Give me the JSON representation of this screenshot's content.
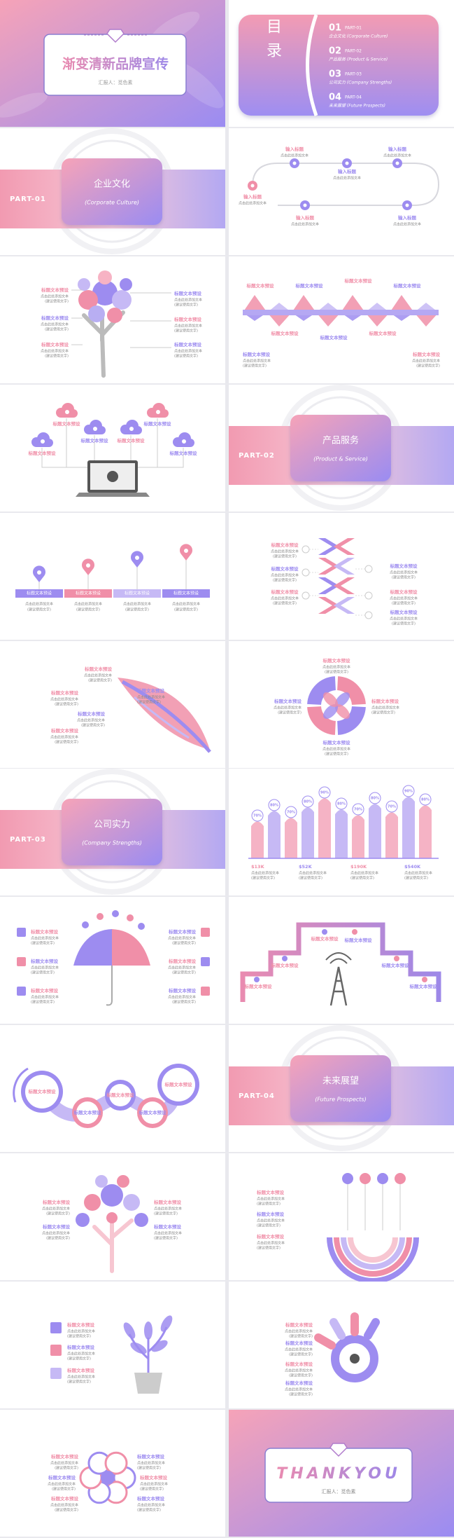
{
  "slides": [
    {
      "type": "cover",
      "title": "渐变清新品牌宣传",
      "subtitle": "汇报人：觅色素"
    },
    {
      "type": "toc",
      "heading": "目录",
      "items": [
        {
          "num": "01",
          "part": "PART-01",
          "name": "企业文化 (Corporate Culture)"
        },
        {
          "num": "02",
          "part": "PART-02",
          "name": "产品服务 (Product & Service)"
        },
        {
          "num": "03",
          "part": "PART-03",
          "name": "公司实力 (Company Strengths)"
        },
        {
          "num": "04",
          "part": "PART-04",
          "name": "未来展望 (Future Prospects)"
        }
      ]
    },
    {
      "type": "section",
      "part": "PART-01",
      "title": "企业文化",
      "subtitle": "(Corporate Culture)"
    },
    {
      "type": "timeline",
      "items": [
        {
          "title": "输入标题",
          "text": "点击此处添加文本"
        },
        {
          "title": "输入标题",
          "text": "点击此处添加文本"
        },
        {
          "title": "输入标题",
          "text": "点击此处添加文本"
        },
        {
          "title": "输入标题",
          "text": "点击此处添加文本"
        },
        {
          "title": "输入标题",
          "text": "点击此处添加文本"
        },
        {
          "title": "输入标题",
          "text": "点击此处添加文本"
        }
      ]
    },
    {
      "type": "tree",
      "items": [
        {
          "title": "标题文本预设",
          "text": "点击此处添加文本",
          "note": "(建议使用文字)"
        },
        {
          "title": "标题文本预设",
          "text": "点击此处添加文本",
          "note": "(建议使用文字)"
        },
        {
          "title": "标题文本预设",
          "text": "点击此处添加文本",
          "note": "(建议使用文字)"
        },
        {
          "title": "标题文本预设",
          "text": "点击此处添加文本",
          "note": "(建议使用文字)"
        },
        {
          "title": "标题文本预设",
          "text": "点击此处添加文本",
          "note": "(建议使用文字)"
        },
        {
          "title": "标题文本预设",
          "text": "点击此处添加文本",
          "note": "(建议使用文字)"
        }
      ]
    },
    {
      "type": "wave",
      "items": [
        {
          "title": "标题文本预设"
        },
        {
          "title": "标题文本预设"
        },
        {
          "title": "标题文本预设"
        },
        {
          "title": "标题文本预设"
        },
        {
          "title": "标题文本预设"
        },
        {
          "title": "标题文本预设"
        },
        {
          "title": "标题文本预设"
        },
        {
          "title": "标题文本预设",
          "text": "点击此处添加文本",
          "note": "(建议使用文字)"
        },
        {
          "title": "标题文本预设",
          "text": "点击此处添加文本",
          "note": "(建议使用文字)"
        }
      ]
    },
    {
      "type": "clouds",
      "items": [
        {
          "title": "标题文本预设"
        },
        {
          "title": "标题文本预设"
        },
        {
          "title": "标题文本预设"
        },
        {
          "title": "标题文本预设"
        },
        {
          "title": "标题文本预设"
        },
        {
          "title": "标题文本预设"
        }
      ]
    },
    {
      "type": "section",
      "part": "PART-02",
      "title": "产品服务",
      "subtitle": "(Product & Service)"
    },
    {
      "type": "pins",
      "items": [
        {
          "title": "标题文本预设",
          "text": "点击此处添加文本",
          "note": "(建议使用文字)"
        },
        {
          "title": "标题文本预设",
          "text": "点击此处添加文本",
          "note": "(建议使用文字)"
        },
        {
          "title": "标题文本预设",
          "text": "点击此处添加文本",
          "note": "(建议使用文字)"
        },
        {
          "title": "标题文本预设",
          "text": "点击此处添加文本",
          "note": "(建议使用文字)"
        }
      ]
    },
    {
      "type": "chevron",
      "items": [
        {
          "title": "标题文本预设",
          "text": "点击此处添加文本",
          "note": "(建议使用文字)"
        },
        {
          "title": "标题文本预设",
          "text": "点击此处添加文本",
          "note": "(建议使用文字)"
        },
        {
          "title": "标题文本预设",
          "text": "点击此处添加文本",
          "note": "(建议使用文字)"
        },
        {
          "title": "标题文本预设",
          "text": "点击此处添加文本",
          "note": "(建议使用文字)"
        },
        {
          "title": "标题文本预设",
          "text": "点击此处添加文本",
          "note": "(建议使用文字)"
        },
        {
          "title": "标题文本预设",
          "text": "点击此处添加文本",
          "note": "(建议使用文字)"
        }
      ]
    },
    {
      "type": "feather",
      "items": [
        {
          "title": "标题文本预设",
          "text": "点击此处添加文本",
          "note": "(建议使用文字)"
        },
        {
          "title": "标题文本预设",
          "text": "点击此处添加文本",
          "note": "(建议使用文字)"
        },
        {
          "title": "标题文本预设",
          "text": "点击此处添加文本",
          "note": "(建议使用文字)"
        },
        {
          "title": "标题文本预设",
          "text": "点击此处添加文本",
          "note": "(建议使用文字)"
        },
        {
          "title": "标题文本预设",
          "text": "点击此处添加文本",
          "note": "(建议使用文字)"
        }
      ]
    },
    {
      "type": "ring",
      "items": [
        {
          "title": "标题文本预设",
          "text": "点击此处添加文本",
          "note": "(建议使用文字)"
        },
        {
          "title": "标题文本预设",
          "text": "点击此处添加文本",
          "note": "(建议使用文字)"
        },
        {
          "title": "标题文本预设",
          "text": "点击此处添加文本",
          "note": "(建议使用文字)"
        },
        {
          "title": "标题文本预设",
          "text": "点击此处添加文本",
          "note": "(建议使用文字)"
        }
      ]
    },
    {
      "type": "section",
      "part": "PART-03",
      "title": "公司实力",
      "subtitle": "(Company Strengths)"
    },
    {
      "type": "bars",
      "values": [
        "70%",
        "80%",
        "70%",
        "80%",
        "90%",
        "80%",
        "70%",
        "80%",
        "70%",
        "90%",
        "80%"
      ],
      "items": [
        {
          "title": "$13K",
          "text": "点击此处添加文本",
          "note": "(建议使用文字)"
        },
        {
          "title": "$52K",
          "text": "点击此处添加文本",
          "note": "(建议使用文字)"
        },
        {
          "title": "$190K",
          "text": "点击此处添加文本",
          "note": "(建议使用文字)"
        },
        {
          "title": "$540K",
          "text": "点击此处添加文本",
          "note": "(建议使用文字)"
        }
      ]
    },
    {
      "type": "umbrella",
      "items": [
        {
          "title": "标题文本预设",
          "text": "点击此处添加文本",
          "note": "(建议使用文字)"
        },
        {
          "title": "标题文本预设",
          "text": "点击此处添加文本",
          "note": "(建议使用文字)"
        },
        {
          "title": "标题文本预设",
          "text": "点击此处添加文本",
          "note": "(建议使用文字)"
        },
        {
          "title": "标题文本预设",
          "text": "点击此处添加文本",
          "note": "(建议使用文字)"
        },
        {
          "title": "标题文本预设",
          "text": "点击此处添加文本",
          "note": "(建议使用文字)"
        },
        {
          "title": "标题文本预设",
          "text": "点击此处添加文本",
          "note": "(建议使用文字)"
        }
      ]
    },
    {
      "type": "stairs",
      "items": [
        {
          "title": "标题文本预设"
        },
        {
          "title": "标题文本预设"
        },
        {
          "title": "标题文本预设"
        },
        {
          "title": "标题文本预设"
        },
        {
          "title": "标题文本预设"
        },
        {
          "title": "标题文本预设"
        }
      ]
    },
    {
      "type": "chain",
      "items": [
        {
          "title": "标题文本预设"
        },
        {
          "title": "标题文本预设"
        },
        {
          "title": "标题文本预设"
        },
        {
          "title": "标题文本预设"
        },
        {
          "title": "标题文本预设"
        }
      ]
    },
    {
      "type": "section",
      "part": "PART-04",
      "title": "未来展望",
      "subtitle": "(Future Prospects)"
    },
    {
      "type": "tree2",
      "items": [
        {
          "title": "标题文本预设",
          "text": "点击此处添加文本",
          "note": "(建议使用文字)"
        },
        {
          "title": "标题文本预设",
          "text": "点击此处添加文本",
          "note": "(建议使用文字)"
        },
        {
          "title": "标题文本预设",
          "text": "点击此处添加文本",
          "note": "(建议使用文字)"
        },
        {
          "title": "标题文本预设",
          "text": "点击此处添加文本",
          "note": "(建议使用文字)"
        }
      ]
    },
    {
      "type": "arcs",
      "items": [
        {
          "title": "标题文本预设",
          "text": "点击此处添加文本",
          "note": "(建议使用文字)"
        },
        {
          "title": "标题文本预设",
          "text": "点击此处添加文本",
          "note": "(建议使用文字)"
        },
        {
          "title": "标题文本预设",
          "text": "点击此处添加文本",
          "note": "(建议使用文字)"
        }
      ]
    },
    {
      "type": "plant",
      "items": [
        {
          "title": "标题文本预设",
          "text": "点击此处添加文本",
          "note": "(建议使用文字)"
        },
        {
          "title": "标题文本预设",
          "text": "点击此处添加文本",
          "note": "(建议使用文字)"
        },
        {
          "title": "标题文本预设",
          "text": "点击此处添加文本",
          "note": "(建议使用文字)"
        }
      ]
    },
    {
      "type": "hand",
      "items": [
        {
          "title": "标题文本预设",
          "text": "点击此处添加文本",
          "note": "(建议使用文字)"
        },
        {
          "title": "标题文本预设",
          "text": "点击此处添加文本",
          "note": "(建议使用文字)"
        },
        {
          "title": "标题文本预设",
          "text": "点击此处添加文本",
          "note": "(建议使用文字)"
        },
        {
          "title": "标题文本预设",
          "text": "点击此处添加文本",
          "note": "(建议使用文字)"
        }
      ]
    },
    {
      "type": "flower",
      "items": [
        {
          "title": "标题文本预设",
          "text": "点击此处添加文本",
          "note": "(建议使用文字)"
        },
        {
          "title": "标题文本预设",
          "text": "点击此处添加文本",
          "note": "(建议使用文字)"
        },
        {
          "title": "标题文本预设",
          "text": "点击此处添加文本",
          "note": "(建议使用文字)"
        },
        {
          "title": "标题文本预设",
          "text": "点击此处添加文本",
          "note": "(建议使用文字)"
        },
        {
          "title": "标题文本预设",
          "text": "点击此处添加文本",
          "note": "(建议使用文字)"
        },
        {
          "title": "标题文本预设",
          "text": "点击此处添加文本",
          "note": "(建议使用文字)"
        }
      ]
    },
    {
      "type": "thanks",
      "title": "THANKYOU",
      "subtitle": "汇报人：觅色素"
    }
  ]
}
